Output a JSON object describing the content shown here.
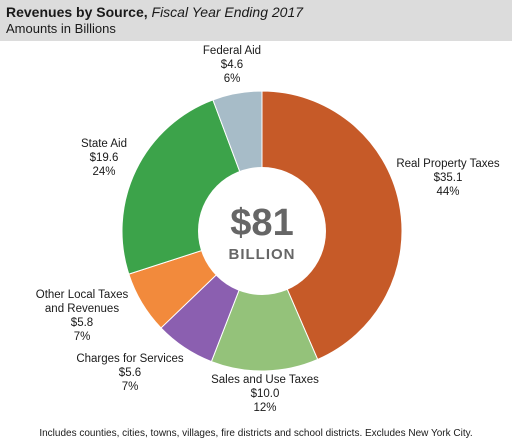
{
  "header": {
    "title_bold": "Revenues by Source,",
    "title_italic": "Fiscal Year Ending 2017",
    "subtitle": "Amounts in Billions"
  },
  "center": {
    "total": "$81",
    "unit": "BILLION"
  },
  "footnote": "Includes counties, cities, towns, villages, fire districts and school districts. Excludes New York City.",
  "chart_data": {
    "type": "pie",
    "title": "Revenues by Source, Fiscal Year Ending 2017",
    "subtitle": "Amounts in Billions",
    "total_label": "$81 BILLION",
    "slices": [
      {
        "name": "Real Property Taxes",
        "amount": "$35.1",
        "value": 35.1,
        "percent": "44%",
        "color": "#c65a28"
      },
      {
        "name": "Sales and Use Taxes",
        "amount": "$10.0",
        "value": 10.0,
        "percent": "12%",
        "color": "#94c27a"
      },
      {
        "name": "Charges for Services",
        "amount": "$5.6",
        "value": 5.6,
        "percent": "7%",
        "color": "#8b5fb0"
      },
      {
        "name": "Other Local Taxes and Revenues",
        "name_lines": [
          "Other Local Taxes",
          "and Revenues"
        ],
        "amount": "$5.8",
        "value": 5.8,
        "percent": "7%",
        "color": "#f28a3c"
      },
      {
        "name": "State Aid",
        "amount": "$19.6",
        "value": 19.6,
        "percent": "24%",
        "color": "#3ca34a"
      },
      {
        "name": "Federal Aid",
        "amount": "$4.6",
        "value": 4.6,
        "percent": "6%",
        "color": "#a7bcc8"
      }
    ]
  }
}
